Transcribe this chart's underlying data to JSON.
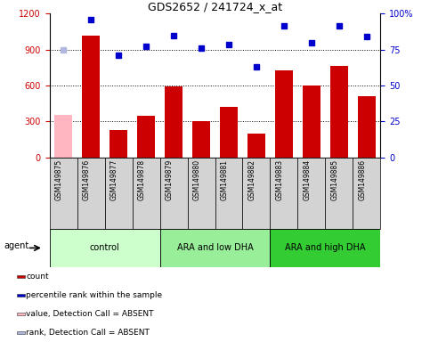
{
  "title": "GDS2652 / 241724_x_at",
  "samples": [
    "GSM149875",
    "GSM149876",
    "GSM149877",
    "GSM149878",
    "GSM149879",
    "GSM149880",
    "GSM149881",
    "GSM149882",
    "GSM149883",
    "GSM149884",
    "GSM149885",
    "GSM149886"
  ],
  "bar_values": [
    355,
    1020,
    230,
    345,
    590,
    305,
    420,
    195,
    730,
    600,
    760,
    510
  ],
  "bar_colors": [
    "#ffb6c1",
    "#cc0000",
    "#cc0000",
    "#cc0000",
    "#cc0000",
    "#cc0000",
    "#cc0000",
    "#cc0000",
    "#cc0000",
    "#cc0000",
    "#cc0000",
    "#cc0000"
  ],
  "rank_values": [
    75,
    96,
    71,
    77.5,
    85,
    75.8,
    78.3,
    63.3,
    91.7,
    80,
    91.7,
    84.2
  ],
  "rank_colors": [
    "#b0b8e0",
    "#0000cc",
    "#0000cc",
    "#0000cc",
    "#0000cc",
    "#0000cc",
    "#0000cc",
    "#0000cc",
    "#0000cc",
    "#0000cc",
    "#0000cc",
    "#0000cc"
  ],
  "ylim_left": [
    0,
    1200
  ],
  "ylim_right": [
    0,
    100
  ],
  "yticks_left": [
    0,
    300,
    600,
    900,
    1200
  ],
  "yticks_right": [
    0,
    25,
    50,
    75,
    100
  ],
  "ytick_labels_left": [
    "0",
    "300",
    "600",
    "900",
    "1200"
  ],
  "ytick_labels_right": [
    "0",
    "25",
    "50",
    "75",
    "100%"
  ],
  "groups": [
    {
      "label": "control",
      "start": 0,
      "end": 3,
      "color": "#ccffcc"
    },
    {
      "label": "ARA and low DHA",
      "start": 4,
      "end": 7,
      "color": "#99ee99"
    },
    {
      "label": "ARA and high DHA",
      "start": 8,
      "end": 11,
      "color": "#33cc33"
    }
  ],
  "agent_label": "agent",
  "legend_items": [
    {
      "label": "count",
      "color": "#cc0000"
    },
    {
      "label": "percentile rank within the sample",
      "color": "#0000cc"
    },
    {
      "label": "value, Detection Call = ABSENT",
      "color": "#ffb6c1"
    },
    {
      "label": "rank, Detection Call = ABSENT",
      "color": "#b0b8e0"
    }
  ],
  "sample_box_color": "#d3d3d3",
  "left_axis_color": "#cc0000",
  "right_axis_color": "#0000cc",
  "grid_yticks": [
    300,
    600,
    900
  ]
}
